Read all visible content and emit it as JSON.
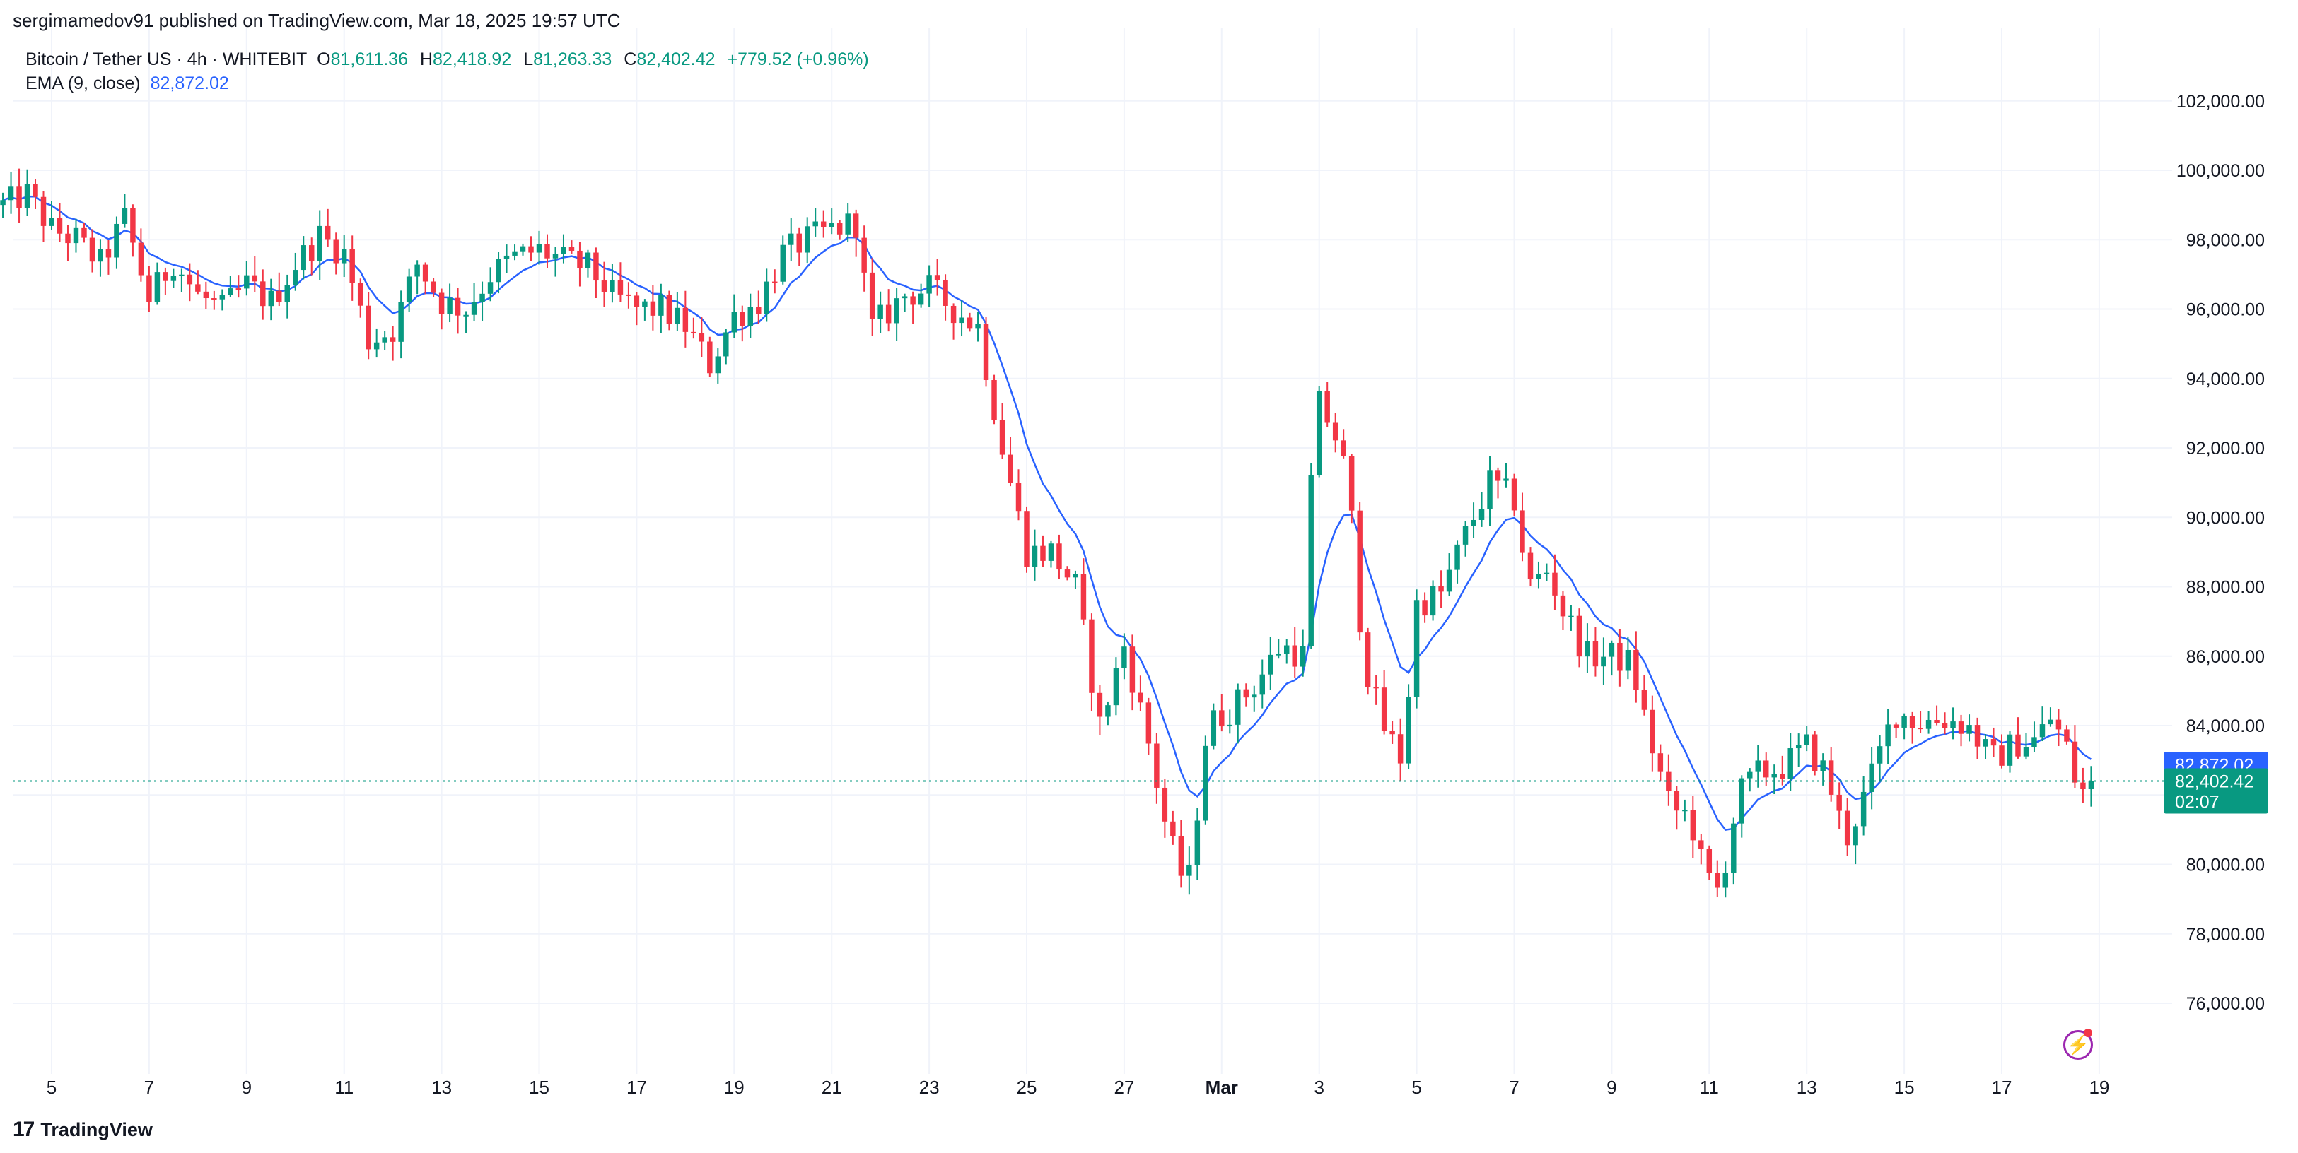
{
  "header": {
    "publisher": "sergimamedov91 published on TradingView.com, Mar 18, 2025 19:57 UTC"
  },
  "legend": {
    "symbol": "Bitcoin / Tether US · 4h · WHITEBIT",
    "o_label": "O",
    "o_value": "81,611.36",
    "h_label": "H",
    "h_value": "82,418.92",
    "l_label": "L",
    "l_value": "81,263.33",
    "c_label": "C",
    "c_value": "82,402.42",
    "change": "+779.52 (+0.96%)",
    "ema_label": "EMA (9, close)",
    "ema_value": "82,872.02"
  },
  "footer": {
    "brand": "TradingView",
    "brand_logo": "17"
  },
  "colors": {
    "up": "#089981",
    "down": "#f23645",
    "ema": "#2962ff",
    "grid": "#f0f3fa",
    "text": "#131722",
    "bolt": "#9c27b0"
  },
  "icons": {
    "brand": "tradingview-logo-icon",
    "bolt": "lightning-bolt-icon"
  },
  "chart_data": {
    "type": "candlestick",
    "interval": "4h",
    "ylim": [
      74000,
      103500
    ],
    "yticks": [
      76000,
      78000,
      80000,
      82000,
      84000,
      86000,
      88000,
      90000,
      92000,
      94000,
      96000,
      98000,
      100000,
      102000
    ],
    "ytick_labels": [
      "76,000.00",
      "78,000.00",
      "80,000.00",
      "82,000.00",
      "84,000.00",
      "86,000.00",
      "88,000.00",
      "90,000.00",
      "92,000.00",
      "94,000.00",
      "96,000.00",
      "98,000.00",
      "100,000.00",
      "102,000.00"
    ],
    "xticks": [
      {
        "label": "5",
        "day": 5
      },
      {
        "label": "7",
        "day": 7
      },
      {
        "label": "9",
        "day": 9
      },
      {
        "label": "11",
        "day": 11
      },
      {
        "label": "13",
        "day": 13
      },
      {
        "label": "15",
        "day": 15
      },
      {
        "label": "17",
        "day": 17
      },
      {
        "label": "19",
        "day": 19
      },
      {
        "label": "21",
        "day": 21
      },
      {
        "label": "23",
        "day": 23
      },
      {
        "label": "25",
        "day": 25
      },
      {
        "label": "27",
        "day": 27
      },
      {
        "label": "Mar",
        "day": 29
      },
      {
        "label": "3",
        "day": 31
      },
      {
        "label": "5",
        "day": 33
      },
      {
        "label": "7",
        "day": 35
      },
      {
        "label": "9",
        "day": 37
      },
      {
        "label": "11",
        "day": 39
      },
      {
        "label": "13",
        "day": 41
      },
      {
        "label": "15",
        "day": 43
      },
      {
        "label": "17",
        "day": 45
      },
      {
        "label": "19",
        "day": 47
      }
    ],
    "last_price": 82402.42,
    "last_price_label": "82,402.42",
    "countdown_label": "02:07",
    "ema_last": 82872.02,
    "ema_last_label": "82,872.02",
    "grid": true,
    "anchors": [
      {
        "day": 4.0,
        "price": 99000
      },
      {
        "day": 4.5,
        "price": 99300
      },
      {
        "day": 5.0,
        "price": 98300
      },
      {
        "day": 5.5,
        "price": 98000
      },
      {
        "day": 6.0,
        "price": 97300
      },
      {
        "day": 6.5,
        "price": 98600
      },
      {
        "day": 7.0,
        "price": 96300
      },
      {
        "day": 7.5,
        "price": 97400
      },
      {
        "day": 8.0,
        "price": 96400
      },
      {
        "day": 8.5,
        "price": 96000
      },
      {
        "day": 9.0,
        "price": 96700
      },
      {
        "day": 9.5,
        "price": 96200
      },
      {
        "day": 10.0,
        "price": 97300
      },
      {
        "day": 10.5,
        "price": 98100
      },
      {
        "day": 11.0,
        "price": 97600
      },
      {
        "day": 11.5,
        "price": 95100
      },
      {
        "day": 12.0,
        "price": 95400
      },
      {
        "day": 12.5,
        "price": 97300
      },
      {
        "day": 13.0,
        "price": 96200
      },
      {
        "day": 13.5,
        "price": 96000
      },
      {
        "day": 14.0,
        "price": 97000
      },
      {
        "day": 14.5,
        "price": 97500
      },
      {
        "day": 15.0,
        "price": 97700
      },
      {
        "day": 15.5,
        "price": 97400
      },
      {
        "day": 16.0,
        "price": 97200
      },
      {
        "day": 16.5,
        "price": 96400
      },
      {
        "day": 17.0,
        "price": 96000
      },
      {
        "day": 17.5,
        "price": 96000
      },
      {
        "day": 18.0,
        "price": 95500
      },
      {
        "day": 18.5,
        "price": 94400
      },
      {
        "day": 19.0,
        "price": 95800
      },
      {
        "day": 19.5,
        "price": 96200
      },
      {
        "day": 20.0,
        "price": 97600
      },
      {
        "day": 20.5,
        "price": 98000
      },
      {
        "day": 21.0,
        "price": 98300
      },
      {
        "day": 21.5,
        "price": 98500
      },
      {
        "day": 21.8,
        "price": 95400
      },
      {
        "day": 22.5,
        "price": 96400
      },
      {
        "day": 23.0,
        "price": 96600
      },
      {
        "day": 23.5,
        "price": 96000
      },
      {
        "day": 24.0,
        "price": 95500
      },
      {
        "day": 24.5,
        "price": 92000
      },
      {
        "day": 25.0,
        "price": 89000
      },
      {
        "day": 25.5,
        "price": 89000
      },
      {
        "day": 26.0,
        "price": 88000
      },
      {
        "day": 26.5,
        "price": 84000
      },
      {
        "day": 27.0,
        "price": 86300
      },
      {
        "day": 27.5,
        "price": 83500
      },
      {
        "day": 27.9,
        "price": 80800
      },
      {
        "day": 28.3,
        "price": 79200
      },
      {
        "day": 28.7,
        "price": 84000
      },
      {
        "day": 29.2,
        "price": 84500
      },
      {
        "day": 29.7,
        "price": 85200
      },
      {
        "day": 30.2,
        "price": 86300
      },
      {
        "day": 30.7,
        "price": 86000
      },
      {
        "day": 30.9,
        "price": 93500
      },
      {
        "day": 31.3,
        "price": 92500
      },
      {
        "day": 31.6,
        "price": 91000
      },
      {
        "day": 31.9,
        "price": 86000
      },
      {
        "day": 32.3,
        "price": 84000
      },
      {
        "day": 32.7,
        "price": 83000
      },
      {
        "day": 33.0,
        "price": 87500
      },
      {
        "day": 33.5,
        "price": 87800
      },
      {
        "day": 34.0,
        "price": 89500
      },
      {
        "day": 34.5,
        "price": 91000
      },
      {
        "day": 35.0,
        "price": 90500
      },
      {
        "day": 35.3,
        "price": 88000
      },
      {
        "day": 35.7,
        "price": 88500
      },
      {
        "day": 36.0,
        "price": 87300
      },
      {
        "day": 36.5,
        "price": 86000
      },
      {
        "day": 37.0,
        "price": 86000
      },
      {
        "day": 37.4,
        "price": 85800
      },
      {
        "day": 37.8,
        "price": 83500
      },
      {
        "day": 38.2,
        "price": 81600
      },
      {
        "day": 38.6,
        "price": 81400
      },
      {
        "day": 38.9,
        "price": 79700
      },
      {
        "day": 39.2,
        "price": 79200
      },
      {
        "day": 39.6,
        "price": 82000
      },
      {
        "day": 40.0,
        "price": 82600
      },
      {
        "day": 40.5,
        "price": 82800
      },
      {
        "day": 41.0,
        "price": 83400
      },
      {
        "day": 41.4,
        "price": 82600
      },
      {
        "day": 41.8,
        "price": 80700
      },
      {
        "day": 42.2,
        "price": 82000
      },
      {
        "day": 42.5,
        "price": 83200
      },
      {
        "day": 42.8,
        "price": 84400
      },
      {
        "day": 43.3,
        "price": 84100
      },
      {
        "day": 43.8,
        "price": 84200
      },
      {
        "day": 44.3,
        "price": 84000
      },
      {
        "day": 44.8,
        "price": 83000
      },
      {
        "day": 45.3,
        "price": 83500
      },
      {
        "day": 45.7,
        "price": 83600
      },
      {
        "day": 46.0,
        "price": 84200
      },
      {
        "day": 46.3,
        "price": 83500
      },
      {
        "day": 46.6,
        "price": 82000
      },
      {
        "day": 46.85,
        "price": 82402.42
      }
    ]
  }
}
